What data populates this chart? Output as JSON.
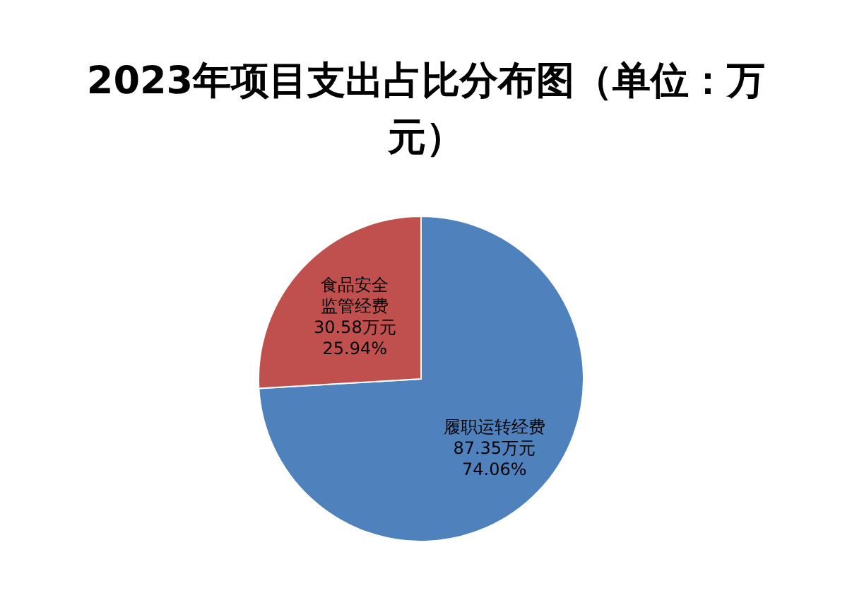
{
  "chart_data": {
    "type": "pie",
    "title": "2023年项目支出占比分布图（单位：万元）",
    "categories": [
      "履职运转经费",
      "食品安全监管经费"
    ],
    "values": [
      87.35,
      30.58
    ],
    "colors": [
      "#4f81bd",
      "#c0504d"
    ],
    "value_labels": [
      "87.35万元\n74.06%",
      "30.58万元\n25.94%"
    ]
  }
}
